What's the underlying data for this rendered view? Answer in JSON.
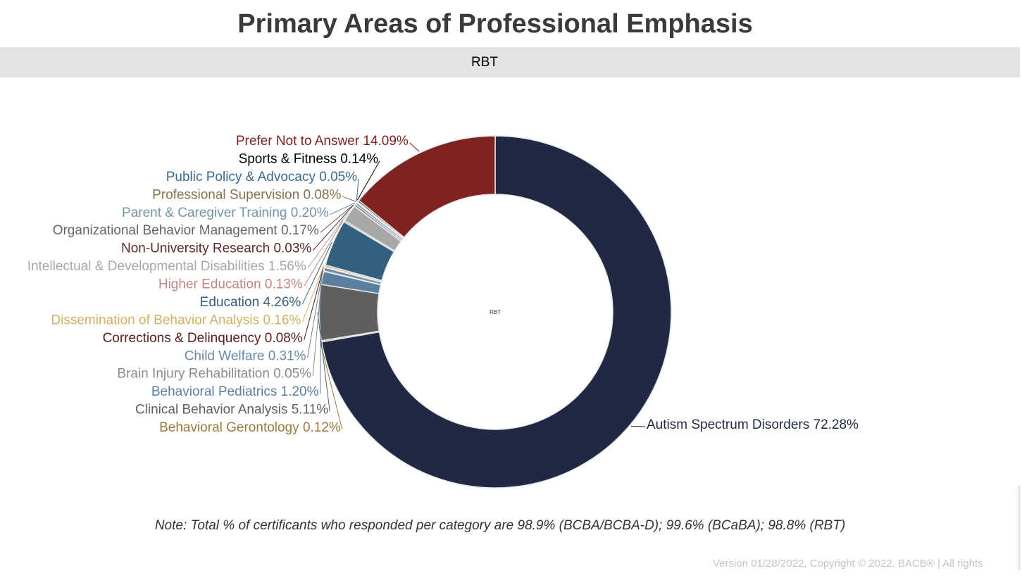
{
  "chart_data": {
    "type": "pie",
    "title": "Primary Areas of Professional Emphasis",
    "subtitle": "RBT",
    "center_label": "RBT",
    "categories": [
      "Autism Spectrum Disorders",
      "Behavioral Gerontology",
      "Clinical Behavior Analysis",
      "Behavioral Pediatrics",
      "Brain Injury Rehabilitation",
      "Child Welfare",
      "Corrections & Delinquency",
      "Dissemination of Behavior Analysis",
      "Education",
      "Higher Education",
      "Intellectual & Developmental Disabilities",
      "Non-University Research",
      "Organizational Behavior Management",
      "Parent & Caregiver Training",
      "Professional Supervision",
      "Public Policy & Advocacy",
      "Sports & Fitness",
      "Prefer Not to Answer"
    ],
    "values": [
      72.28,
      0.12,
      5.11,
      1.2,
      0.05,
      0.31,
      0.08,
      0.16,
      4.26,
      0.13,
      1.56,
      0.03,
      0.17,
      0.2,
      0.08,
      0.05,
      0.14,
      14.09
    ],
    "value_labels": [
      "72.28%",
      "0.12%",
      "5.11%",
      "1.20%",
      "0.05%",
      "0.31%",
      "0.08%",
      "0.16%",
      "4.26%",
      "0.13%",
      "1.56%",
      "0.03%",
      "0.17%",
      "0.20%",
      "0.08%",
      "0.05%",
      "0.14%",
      "14.09%"
    ],
    "colors": [
      "#1f2944",
      "#9a7b3c",
      "#5f5f5f",
      "#5b7f9f",
      "#8a8a8a",
      "#6a8ba8",
      "#5a1c1c",
      "#d2b064",
      "#34607f",
      "#c08585",
      "#a8a8a8",
      "#5a2b2b",
      "#666666",
      "#7393ab",
      "#857050",
      "#3a6a90",
      "#000000",
      "#7f2222"
    ],
    "note": "Note: Total % of certificants who responded per category are 98.9% (BCBA/BCBA-D); 99.6% (BCaBA); 98.8% (RBT)",
    "footer": "Version 01/28/2022, Copyright © 2022, BACB® | All rights"
  }
}
